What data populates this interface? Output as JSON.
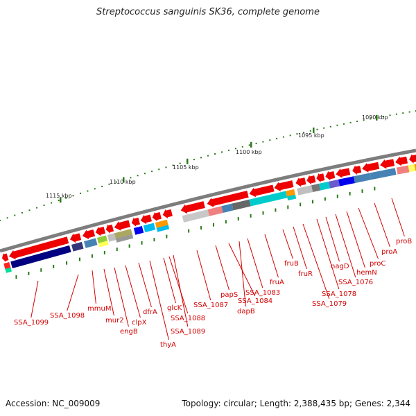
{
  "title": "Streptococcus sanguinis SK36, complete genome",
  "footer": {
    "accession": "Accession: NC_009009",
    "topology": "Topology: circular; Length: 2,388,435 bp; Genes: 2,344"
  },
  "scale_labels": [
    "1090 kbp",
    "1095 kbp",
    "1100 kbp",
    "1105 kbp",
    "1110 kbp",
    "1115 kbp"
  ],
  "gene_labels": [
    "SSA_1099",
    "SSA_1098",
    "mmuM",
    "mur2",
    "engB",
    "clpX",
    "dfrA",
    "thyA",
    "glcK",
    "SSA_1088",
    "SSA_1089",
    "SSA_1087",
    "papS",
    "SSA_1084",
    "dapB",
    "SSA_1083",
    "fruA",
    "fruB",
    "fruR",
    "SSA_1079",
    "SSA_1078",
    "nagD",
    "SSA_1076",
    "hemN",
    "proC",
    "proA",
    "proB"
  ],
  "colors": {
    "gene_arrow": "#ee0000",
    "backbone": "#808080",
    "tick": "#2a7a1a",
    "label": "#d40000"
  }
}
